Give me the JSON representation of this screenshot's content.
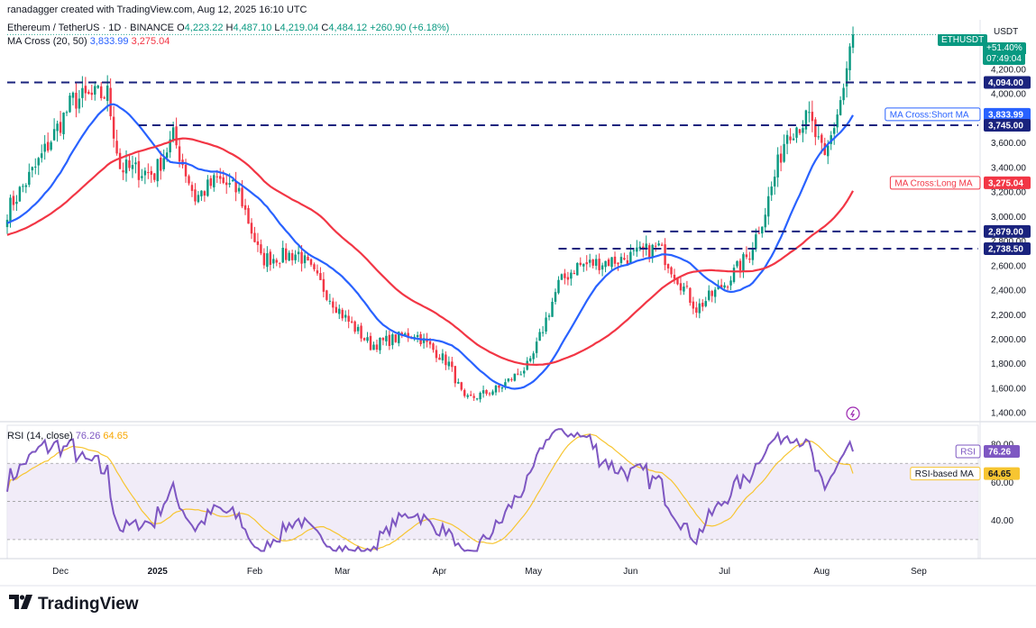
{
  "header": {
    "creator": "ranadagger created with TradingView.com, Aug 12, 2025 16:10 UTC",
    "symbol_line": "Ethereum / TetherUS · 1D · BINANCE",
    "ohlc": {
      "o_label": "O",
      "o": "4,223.22",
      "h_label": "H",
      "h": "4,487.10",
      "l_label": "L",
      "l": "4,219.04",
      "c_label": "C",
      "c": "4,484.12",
      "change": "+260.90 (+6.18%)"
    },
    "ma_line": {
      "label": "MA Cross (20, 50)",
      "short": "3,833.99",
      "long": "3,275.04"
    },
    "rsi_line": {
      "label": "RSI (14, close)",
      "rsi": "76.26",
      "rsi_ma": "64.65"
    }
  },
  "right_panel": {
    "currency": "USDT",
    "symbol_tag": "ETHUSDT",
    "change_pct": "+51.40%",
    "countdown": "07:49:04"
  },
  "brand": {
    "name": "TradingView",
    "logo": "TV-logo-icon"
  },
  "colors": {
    "up": "#089981",
    "down": "#f23645",
    "short_ma": "#2962ff",
    "long_ma": "#f23645",
    "rsi": "#7e57c2",
    "rsi_ma": "#f7c531",
    "level": "#1a237e",
    "rsi_band": "#ede7f6"
  },
  "chart_data": [
    {
      "type": "candlestick",
      "title": "Ethereum / TetherUS · 1D · BINANCE",
      "x_ticks": [
        "Dec",
        "2025",
        "Feb",
        "Mar",
        "Apr",
        "May",
        "Jun",
        "Jul",
        "Aug",
        "Sep"
      ],
      "y_ticks": [
        "1,400.00",
        "1,600.00",
        "1,800.00",
        "2,000.00",
        "2,200.00",
        "2,400.00",
        "2,600.00",
        "2,800.00",
        "3,000.00",
        "3,200.00",
        "3,400.00",
        "3,600.00",
        "4,000.00",
        "4,200.00"
      ],
      "ylim": [
        1350,
        4560
      ],
      "price_anchor_path": [
        [
          "2024-11-14",
          3050
        ],
        [
          "2024-11-23",
          3400
        ],
        [
          "2024-12-05",
          3950
        ],
        [
          "2024-12-16",
          4000
        ],
        [
          "2024-12-20",
          3400
        ],
        [
          "2024-12-31",
          3350
        ],
        [
          "2025-01-06",
          3650
        ],
        [
          "2025-01-13",
          3150
        ],
        [
          "2025-01-20",
          3300
        ],
        [
          "2025-01-27",
          3200
        ],
        [
          "2025-02-03",
          2650
        ],
        [
          "2025-02-15",
          2700
        ],
        [
          "2025-03-01",
          2200
        ],
        [
          "2025-03-10",
          1950
        ],
        [
          "2025-03-24",
          2050
        ],
        [
          "2025-04-04",
          1800
        ],
        [
          "2025-04-09",
          1500
        ],
        [
          "2025-04-20",
          1600
        ],
        [
          "2025-04-30",
          1800
        ],
        [
          "2025-05-09",
          2450
        ],
        [
          "2025-05-15",
          2600
        ],
        [
          "2025-05-29",
          2650
        ],
        [
          "2025-06-10",
          2750
        ],
        [
          "2025-06-22",
          2250
        ],
        [
          "2025-07-01",
          2450
        ],
        [
          "2025-07-09",
          2700
        ],
        [
          "2025-07-14",
          3050
        ],
        [
          "2025-07-21",
          3700
        ],
        [
          "2025-07-28",
          3800
        ],
        [
          "2025-08-02",
          3450
        ],
        [
          "2025-08-08",
          4050
        ],
        [
          "2025-08-11",
          4484.12
        ]
      ],
      "levels": [
        {
          "value": 4094.0,
          "label": "4,094.00",
          "start": "2024-11-14"
        },
        {
          "value": 3745.0,
          "label": "3,745.00",
          "start": "2024-12-26"
        },
        {
          "value": 2879.0,
          "label": "2,879.00",
          "start": "2025-06-05"
        },
        {
          "value": 2738.5,
          "label": "2,738.50",
          "start": "2025-05-09"
        }
      ],
      "price_labels": [
        {
          "text": "4,094.00",
          "value": 4094.0,
          "kind": "level"
        },
        {
          "text": "3,833.99",
          "value": 3833.99,
          "kind": "short_ma",
          "name": "MA Cross:Short MA"
        },
        {
          "text": "3,745.00",
          "value": 3745.0,
          "kind": "level"
        },
        {
          "text": "3,275.04",
          "value": 3275.04,
          "kind": "long_ma",
          "name": "MA Cross:Long MA"
        },
        {
          "text": "2,879.00",
          "value": 2879.0,
          "kind": "level"
        },
        {
          "text": "2,738.50",
          "value": 2738.5,
          "kind": "level"
        }
      ],
      "series": [
        {
          "name": "MA Cross:Short MA",
          "period": 20,
          "last": 3833.99
        },
        {
          "name": "MA Cross:Long MA",
          "period": 50,
          "last": 3275.04
        }
      ]
    },
    {
      "type": "line",
      "title": "RSI (14, close)",
      "y_ticks": [
        "40.00",
        "60.00",
        "80.00"
      ],
      "ylim": [
        20,
        90
      ],
      "band": [
        30,
        70
      ],
      "series": [
        {
          "name": "RSI",
          "last": 76.26
        },
        {
          "name": "RSI-based MA",
          "last": 64.65
        }
      ]
    }
  ]
}
